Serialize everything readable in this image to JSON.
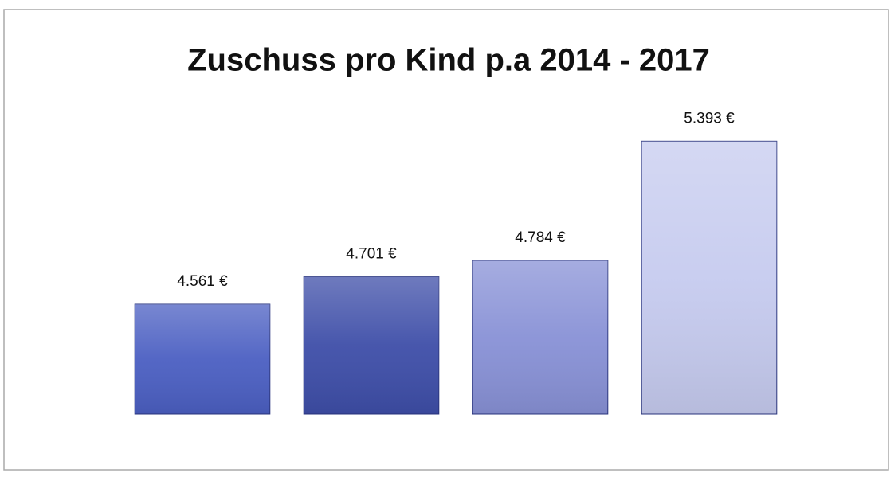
{
  "chart_data": {
    "type": "bar",
    "title": "Zuschuss pro Kind p.a 2014 - 2017",
    "categories": [
      null,
      null,
      null,
      null
    ],
    "values": [
      4561,
      4701,
      4784,
      5393
    ],
    "value_labels": [
      "4.561 €",
      "4.701 €",
      "4.784 €",
      "5.393 €"
    ],
    "colors": [
      "#4b5fc2",
      "#3e4ea8",
      "#8891d6",
      "#c6cbef"
    ],
    "ylim": [
      4000,
      5500
    ]
  }
}
